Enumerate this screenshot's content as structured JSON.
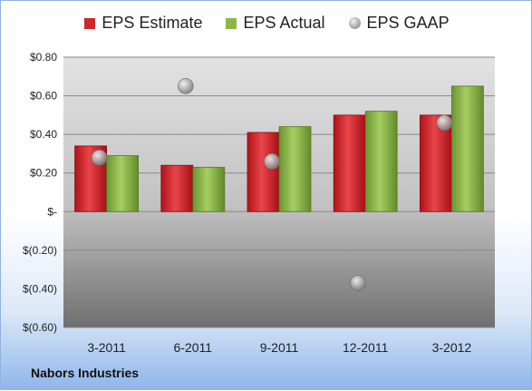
{
  "footer": {
    "company": "Nabors Industries"
  },
  "legend": [
    {
      "label": "EPS Estimate",
      "color": "#d0262c",
      "marker": "square"
    },
    {
      "label": "EPS Actual",
      "color": "#8ab847",
      "marker": "square"
    },
    {
      "label": "EPS GAAP",
      "color": "#a6a6a6",
      "marker": "circle"
    }
  ],
  "chart_data": {
    "type": "bar",
    "categories": [
      "3-2011",
      "6-2011",
      "9-2011",
      "12-2011",
      "3-2012"
    ],
    "series": [
      {
        "name": "EPS Estimate",
        "type": "bar",
        "color": "#d0262c",
        "values": [
          0.34,
          0.24,
          0.41,
          0.5,
          0.5
        ]
      },
      {
        "name": "EPS Actual",
        "type": "bar",
        "color": "#8ab847",
        "values": [
          0.29,
          0.23,
          0.44,
          0.52,
          0.65
        ]
      },
      {
        "name": "EPS GAAP",
        "type": "scatter",
        "color": "#a6a6a6",
        "values": [
          0.28,
          0.65,
          0.26,
          -0.37,
          0.46
        ]
      }
    ],
    "ylim": [
      -0.6,
      0.8
    ],
    "yticks": [
      0.8,
      0.6,
      0.4,
      0.2,
      0,
      -0.2,
      -0.4,
      -0.6
    ],
    "ytick_labels": [
      "$0.80",
      "$0.60",
      "$0.40",
      "$0.20",
      "$-",
      "$(0.20)",
      "$(0.40)",
      "$(0.60)"
    ],
    "grid": true,
    "legend_position": "top"
  }
}
